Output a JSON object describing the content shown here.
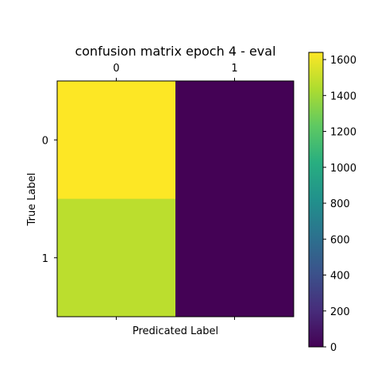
{
  "chart_data": {
    "type": "heatmap",
    "title": "confusion matrix epoch 4 - eval",
    "xlabel": "Predicated Label",
    "ylabel": "True Label",
    "x_categories": [
      "0",
      "1"
    ],
    "y_categories": [
      "0",
      "1"
    ],
    "values": [
      [
        1640,
        5
      ],
      [
        1470,
        3
      ]
    ],
    "colorbar": {
      "min": 0,
      "max": 1640,
      "ticks": [
        0,
        200,
        400,
        600,
        800,
        1000,
        1200,
        1400,
        1600
      ],
      "tick_labels": [
        "0",
        "200",
        "400",
        "600",
        "800",
        "1000",
        "1200",
        "1400",
        "1600"
      ],
      "colormap": "viridis"
    },
    "grid": false,
    "x_ticks_position": "top"
  }
}
